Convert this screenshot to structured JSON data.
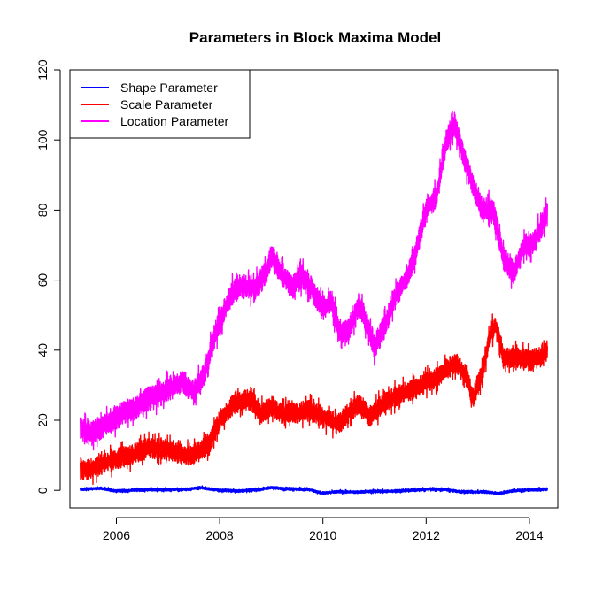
{
  "chart_data": {
    "type": "line",
    "title": "Parameters in Block Maxima Model",
    "xlabel": "",
    "ylabel": "",
    "xlim": [
      2005.1,
      2014.55
    ],
    "ylim": [
      -5,
      120
    ],
    "x_ticks": [
      2006,
      2008,
      2010,
      2012,
      2014
    ],
    "x_tick_labels": [
      "2006",
      "2008",
      "2010",
      "2012",
      "2014"
    ],
    "y_ticks": [
      0,
      20,
      40,
      60,
      80,
      100,
      120
    ],
    "y_tick_labels": [
      "0",
      "20",
      "40",
      "60",
      "80",
      "100",
      "120"
    ],
    "grid": false,
    "legend_position": "top-left",
    "series": [
      {
        "name": "Shape Parameter",
        "color": "#0000ff",
        "band": 0.4,
        "points": [
          [
            2005.3,
            0.3
          ],
          [
            2005.7,
            0.6
          ],
          [
            2006.0,
            -0.2
          ],
          [
            2006.3,
            0.0
          ],
          [
            2006.7,
            0.2
          ],
          [
            2007.0,
            0.2
          ],
          [
            2007.4,
            0.3
          ],
          [
            2007.6,
            0.8
          ],
          [
            2008.0,
            0.0
          ],
          [
            2008.4,
            -0.2
          ],
          [
            2008.8,
            0.3
          ],
          [
            2009.0,
            0.8
          ],
          [
            2009.3,
            0.4
          ],
          [
            2009.7,
            0.3
          ],
          [
            2010.0,
            -0.8
          ],
          [
            2010.3,
            -0.4
          ],
          [
            2010.6,
            -0.5
          ],
          [
            2011.0,
            -0.3
          ],
          [
            2011.4,
            -0.2
          ],
          [
            2011.8,
            0.1
          ],
          [
            2012.1,
            0.4
          ],
          [
            2012.4,
            0.2
          ],
          [
            2012.6,
            -0.3
          ],
          [
            2012.9,
            -0.5
          ],
          [
            2013.1,
            -0.4
          ],
          [
            2013.4,
            -0.9
          ],
          [
            2013.7,
            -0.1
          ],
          [
            2014.0,
            0.1
          ],
          [
            2014.35,
            0.3
          ]
        ]
      },
      {
        "name": "Scale Parameter",
        "color": "#ff0000",
        "band": 3,
        "points": [
          [
            2005.3,
            6
          ],
          [
            2005.5,
            6
          ],
          [
            2005.8,
            8
          ],
          [
            2006.0,
            9
          ],
          [
            2006.3,
            10
          ],
          [
            2006.6,
            12
          ],
          [
            2006.9,
            12
          ],
          [
            2007.1,
            11
          ],
          [
            2007.4,
            10
          ],
          [
            2007.6,
            11
          ],
          [
            2007.8,
            13
          ],
          [
            2008.0,
            20
          ],
          [
            2008.3,
            25
          ],
          [
            2008.6,
            26
          ],
          [
            2008.8,
            22
          ],
          [
            2009.0,
            24
          ],
          [
            2009.2,
            22
          ],
          [
            2009.5,
            22
          ],
          [
            2009.7,
            23
          ],
          [
            2010.0,
            21
          ],
          [
            2010.3,
            19
          ],
          [
            2010.5,
            22
          ],
          [
            2010.7,
            25
          ],
          [
            2010.9,
            21
          ],
          [
            2011.1,
            24
          ],
          [
            2011.3,
            26
          ],
          [
            2011.6,
            28
          ],
          [
            2011.8,
            29
          ],
          [
            2012.0,
            31
          ],
          [
            2012.2,
            32
          ],
          [
            2012.4,
            35
          ],
          [
            2012.6,
            36
          ],
          [
            2012.8,
            32
          ],
          [
            2012.9,
            26
          ],
          [
            2013.1,
            34
          ],
          [
            2013.25,
            45
          ],
          [
            2013.35,
            47
          ],
          [
            2013.5,
            38
          ],
          [
            2013.8,
            38
          ],
          [
            2014.0,
            37
          ],
          [
            2014.2,
            38
          ],
          [
            2014.35,
            40
          ]
        ]
      },
      {
        "name": "Location Parameter",
        "color": "#ff00ff",
        "band": 3.5,
        "points": [
          [
            2005.3,
            18
          ],
          [
            2005.5,
            16
          ],
          [
            2005.8,
            19
          ],
          [
            2006.0,
            21
          ],
          [
            2006.3,
            23
          ],
          [
            2006.6,
            26
          ],
          [
            2006.8,
            27
          ],
          [
            2007.0,
            29
          ],
          [
            2007.3,
            31
          ],
          [
            2007.5,
            28
          ],
          [
            2007.7,
            33
          ],
          [
            2007.9,
            44
          ],
          [
            2008.1,
            52
          ],
          [
            2008.3,
            58
          ],
          [
            2008.5,
            58
          ],
          [
            2008.7,
            58
          ],
          [
            2008.9,
            62
          ],
          [
            2009.0,
            67
          ],
          [
            2009.2,
            62
          ],
          [
            2009.4,
            58
          ],
          [
            2009.6,
            61
          ],
          [
            2009.8,
            57
          ],
          [
            2010.0,
            52
          ],
          [
            2010.15,
            54
          ],
          [
            2010.35,
            44
          ],
          [
            2010.5,
            46
          ],
          [
            2010.7,
            53
          ],
          [
            2010.85,
            48
          ],
          [
            2011.0,
            41
          ],
          [
            2011.2,
            47
          ],
          [
            2011.4,
            55
          ],
          [
            2011.6,
            60
          ],
          [
            2011.8,
            68
          ],
          [
            2012.0,
            80
          ],
          [
            2012.2,
            84
          ],
          [
            2012.4,
            100
          ],
          [
            2012.55,
            105
          ],
          [
            2012.7,
            97
          ],
          [
            2012.9,
            87
          ],
          [
            2013.1,
            80
          ],
          [
            2013.3,
            80
          ],
          [
            2013.5,
            66
          ],
          [
            2013.7,
            62
          ],
          [
            2013.9,
            70
          ],
          [
            2014.1,
            71
          ],
          [
            2014.25,
            76
          ],
          [
            2014.35,
            80
          ]
        ]
      }
    ]
  }
}
